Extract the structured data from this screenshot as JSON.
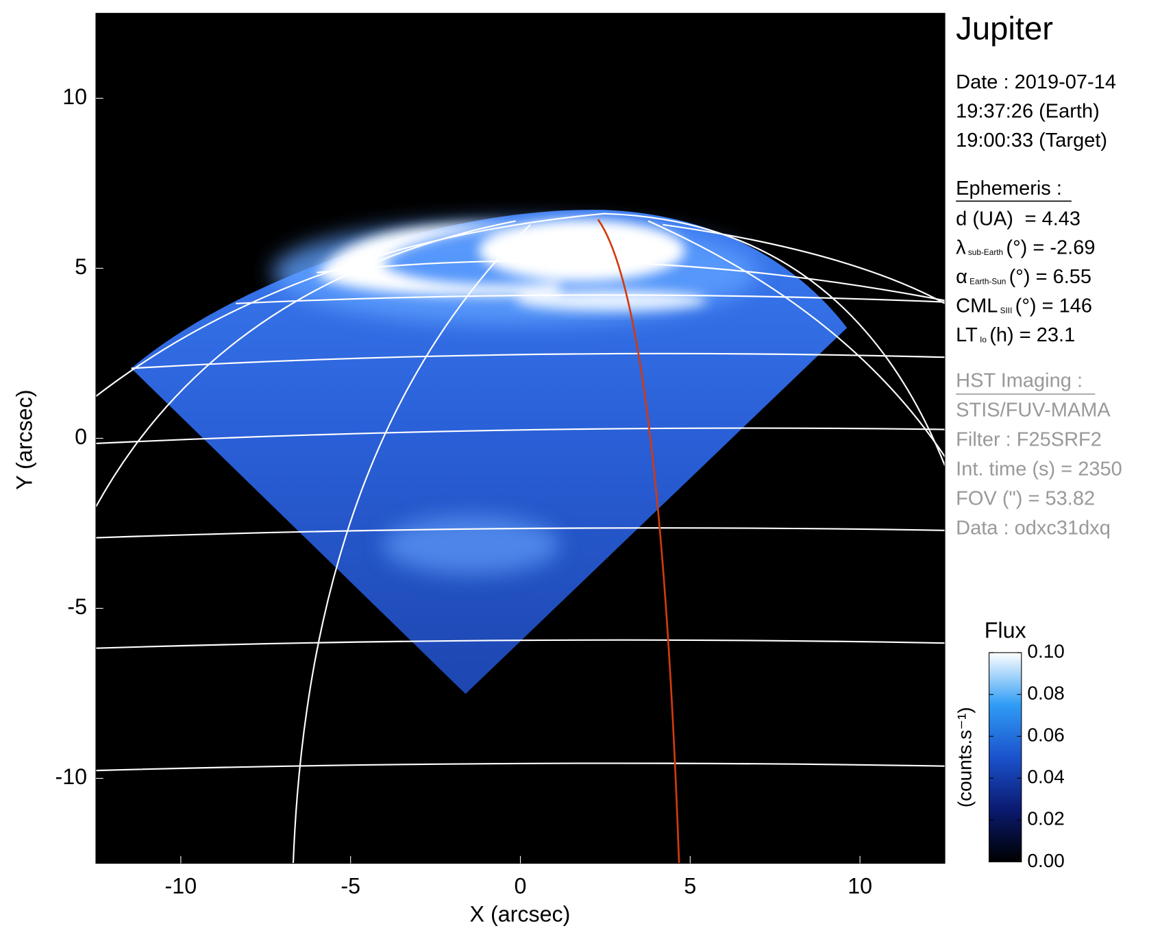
{
  "chart_data": {
    "type": "image",
    "title": "Jupiter",
    "xlabel": "X (arcsec)",
    "ylabel": "Y (arcsec)",
    "xlim": [
      -12.5,
      12.5
    ],
    "ylim": [
      -12.5,
      12.5
    ],
    "xticks": [
      -10,
      -5,
      0,
      5,
      10
    ],
    "yticks": [
      -10,
      -5,
      0,
      5,
      10
    ],
    "colorbar": {
      "title": "Flux",
      "label": "(counts.s⁻¹)",
      "lim": [
        0,
        0.1
      ],
      "ticks": [
        {
          "value": 0,
          "label": "0.00"
        },
        {
          "value": 0.02,
          "label": "0.02"
        },
        {
          "value": 0.04,
          "label": "0.04"
        },
        {
          "value": 0.06,
          "label": "0.06"
        },
        {
          "value": 0.08,
          "label": "0.08"
        },
        {
          "value": 0.1,
          "label": "0.10"
        }
      ]
    },
    "info": {
      "date": [
        "Date : 2019-07-14",
        "19:37:26 (Earth)",
        "19:00:33 (Target)"
      ],
      "ephemeris": {
        "heading": "Ephemeris :",
        "lines": [
          {
            "main": "d (UA)",
            "rest": "   = 4.43"
          },
          {
            "main": "λ",
            "sub": "sub-Earth",
            "rest": "(°) = -2.69"
          },
          {
            "main": "α",
            "sub": "Earth-Sun",
            "rest": "(°) = 6.55"
          },
          {
            "main": "CML",
            "sub": "SIII",
            "rest": "(°) = 146"
          },
          {
            "main": "LT",
            "sub": "Io",
            "rest": "(h) = 23.1"
          }
        ]
      },
      "instrument": {
        "heading": "HST Imaging :",
        "lines": [
          "STIS/FUV-MAMA",
          "Filter : F25SRF2",
          "Int. time (s) = 2350",
          "FOV (\") = 53.82",
          "Data : odxc31dxq"
        ]
      }
    }
  }
}
